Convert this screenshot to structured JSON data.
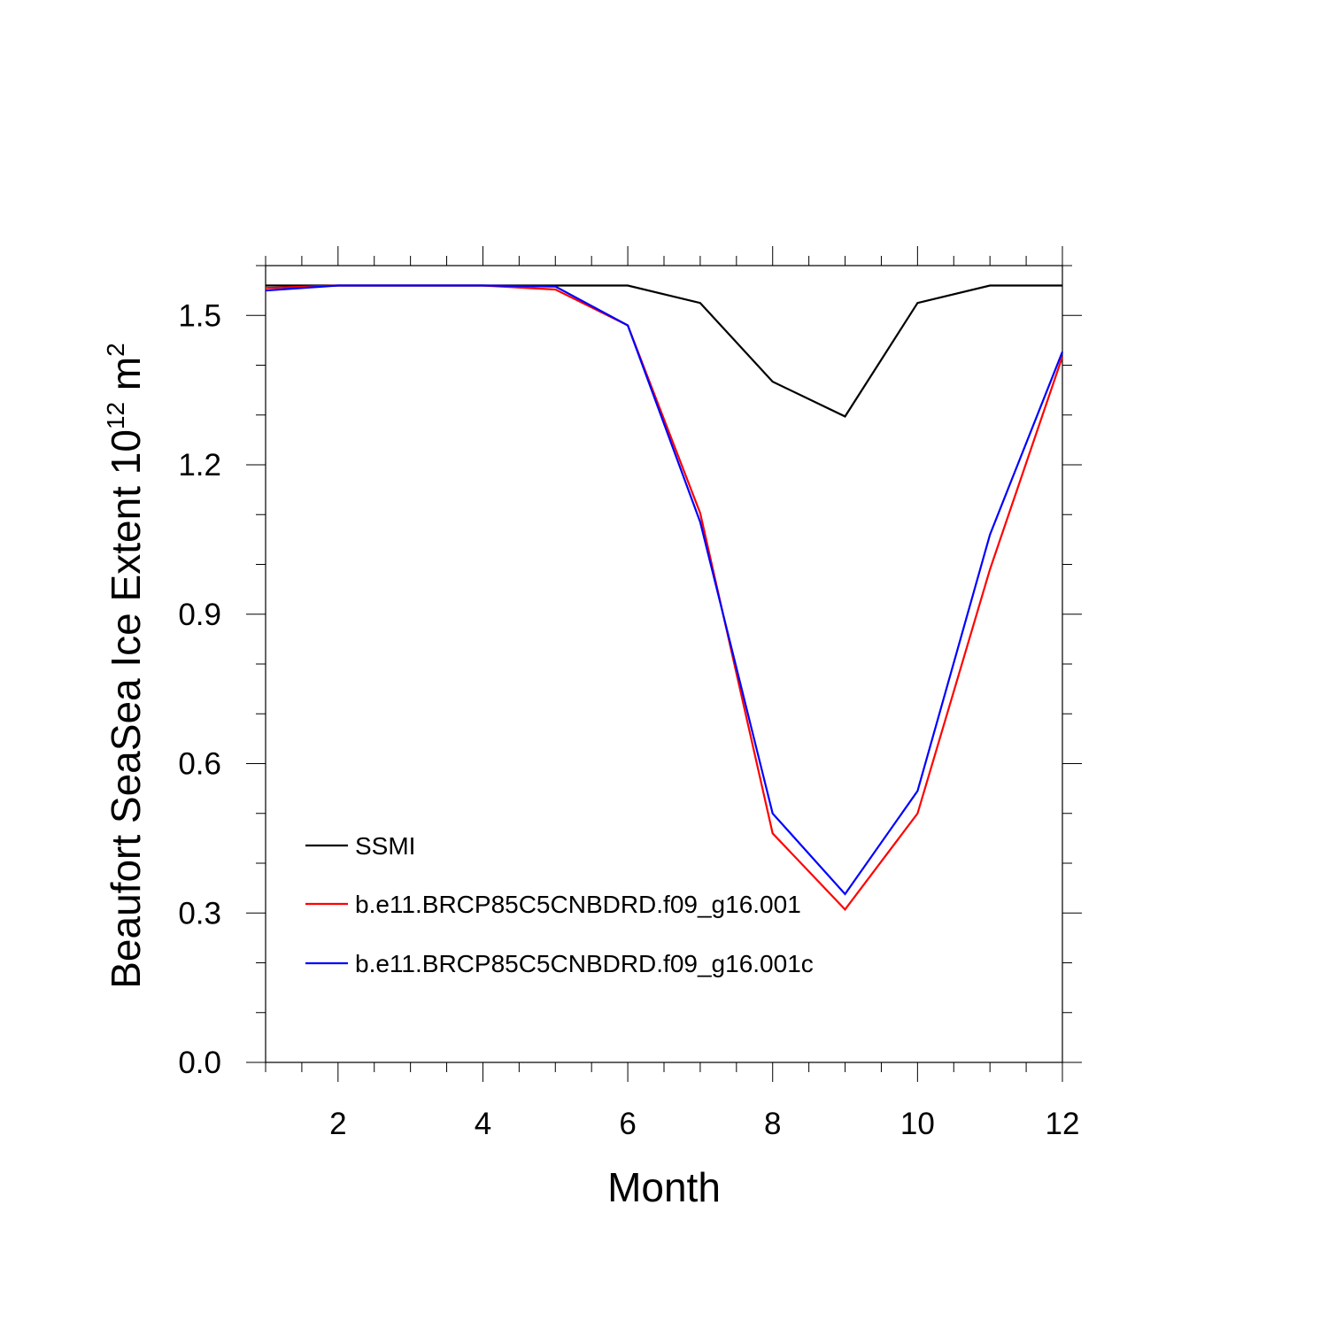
{
  "chart_data": {
    "type": "line",
    "title": "",
    "xlabel": "Month",
    "ylabel": {
      "text": "Beaufort SeaSea Ice Extent 10",
      "exp1": "12",
      "unit": " m",
      "exp2": "2"
    },
    "xlim": [
      1,
      12
    ],
    "ylim": [
      0,
      1.6
    ],
    "xticks": [
      2,
      4,
      6,
      8,
      10,
      12
    ],
    "xtick_labels": [
      "2",
      "4",
      "6",
      "8",
      "10",
      "12"
    ],
    "yticks": [
      0.0,
      0.3,
      0.6,
      0.9,
      1.2,
      1.5
    ],
    "ytick_labels": [
      "0.0",
      "0.3",
      "0.6",
      "0.9",
      "1.2",
      "1.5"
    ],
    "grid": false,
    "legend_position": "bottom-left",
    "x": [
      1,
      2,
      3,
      4,
      5,
      6,
      7,
      8,
      9,
      10,
      11,
      12
    ],
    "series": [
      {
        "name": "SSMI",
        "color": "#000000",
        "values": [
          1.56,
          1.56,
          1.56,
          1.56,
          1.56,
          1.56,
          1.525,
          1.367,
          1.297,
          1.525,
          1.56,
          1.56
        ]
      },
      {
        "name": "b.e11.BRCP85C5CNBDRD.f09_g16.001",
        "color": "#ff0000",
        "values": [
          1.555,
          1.56,
          1.56,
          1.56,
          1.552,
          1.48,
          1.103,
          0.46,
          0.307,
          0.5,
          0.99,
          1.417
        ]
      },
      {
        "name": "b.e11.BRCP85C5CNBDRD.f09_g16.001c",
        "color": "#0000ff",
        "values": [
          1.55,
          1.56,
          1.56,
          1.56,
          1.558,
          1.48,
          1.085,
          0.5,
          0.338,
          0.545,
          1.06,
          1.427
        ]
      }
    ]
  }
}
